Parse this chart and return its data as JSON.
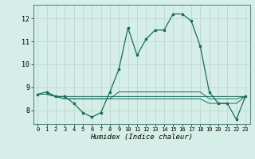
{
  "title": "",
  "xlabel": "Humidex (Indice chaleur)",
  "ylabel": "",
  "background_color": "#d6eee8",
  "grid_color": "#b8d4cc",
  "line_color": "#1a6b5e",
  "x_values": [
    0,
    1,
    2,
    3,
    4,
    5,
    6,
    7,
    8,
    9,
    10,
    11,
    12,
    13,
    14,
    15,
    16,
    17,
    18,
    19,
    20,
    21,
    22,
    23
  ],
  "main_line": [
    8.7,
    8.8,
    8.6,
    8.6,
    8.3,
    7.9,
    7.7,
    7.9,
    8.8,
    9.8,
    11.6,
    10.4,
    11.1,
    11.5,
    11.5,
    12.2,
    12.2,
    11.9,
    10.8,
    8.8,
    8.3,
    8.3,
    7.6,
    8.6
  ],
  "flat_line1": [
    8.7,
    8.7,
    8.6,
    8.6,
    8.6,
    8.6,
    8.6,
    8.6,
    8.6,
    8.6,
    8.6,
    8.6,
    8.6,
    8.6,
    8.6,
    8.6,
    8.6,
    8.6,
    8.6,
    8.6,
    8.6,
    8.6,
    8.6,
    8.6
  ],
  "flat_line2": [
    8.7,
    8.7,
    8.6,
    8.5,
    8.5,
    8.5,
    8.5,
    8.5,
    8.5,
    8.8,
    8.8,
    8.8,
    8.8,
    8.8,
    8.8,
    8.8,
    8.8,
    8.8,
    8.8,
    8.5,
    8.5,
    8.5,
    8.5,
    8.6
  ],
  "flat_line3": [
    8.7,
    8.7,
    8.6,
    8.5,
    8.5,
    8.5,
    8.5,
    8.5,
    8.5,
    8.5,
    8.5,
    8.5,
    8.5,
    8.5,
    8.5,
    8.5,
    8.5,
    8.5,
    8.5,
    8.3,
    8.3,
    8.3,
    8.3,
    8.6
  ],
  "ylim": [
    7.4,
    12.6
  ],
  "xlim": [
    -0.5,
    23.5
  ],
  "yticks": [
    8,
    9,
    10,
    11,
    12
  ],
  "xticks": [
    0,
    1,
    2,
    3,
    4,
    5,
    6,
    7,
    8,
    9,
    10,
    11,
    12,
    13,
    14,
    15,
    16,
    17,
    18,
    19,
    20,
    21,
    22,
    23
  ]
}
